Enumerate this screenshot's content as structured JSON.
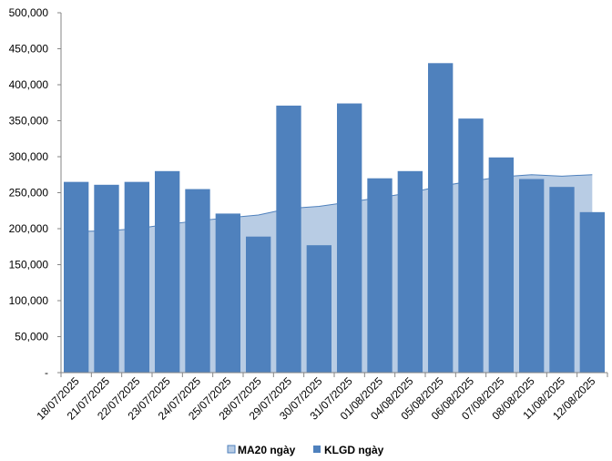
{
  "chart_data": {
    "type": "bar",
    "categories": [
      "18/07/2025",
      "21/07/2025",
      "22/07/2025",
      "23/07/2025",
      "24/07/2025",
      "25/07/2025",
      "28/07/2025",
      "29/07/2025",
      "30/07/2025",
      "31/07/2025",
      "01/08/2025",
      "04/08/2025",
      "05/08/2025",
      "06/08/2025",
      "07/08/2025",
      "08/08/2025",
      "11/08/2025",
      "12/08/2025"
    ],
    "series": [
      {
        "name": "MA20 ngày",
        "kind": "area",
        "color": "#b8cce4",
        "stroke": "#4f81bd",
        "values": [
          196000,
          197000,
          200000,
          206000,
          211000,
          215000,
          219000,
          228000,
          231000,
          237000,
          243000,
          250000,
          259000,
          266000,
          272000,
          275000,
          273000,
          275000
        ]
      },
      {
        "name": "KLGD ngày",
        "kind": "bar",
        "color": "#4f81bd",
        "values": [
          265000,
          261000,
          265000,
          280000,
          255000,
          221000,
          189000,
          371000,
          177000,
          374000,
          270000,
          280000,
          430000,
          353000,
          299000,
          269000,
          258000,
          223000
        ]
      }
    ],
    "ylim": [
      0,
      500000
    ],
    "yticks": [
      "-",
      "50,000",
      "100,000",
      "150,000",
      "200,000",
      "250,000",
      "300,000",
      "350,000",
      "400,000",
      "450,000",
      "500,000"
    ],
    "grid": false,
    "legend": "bottom"
  }
}
